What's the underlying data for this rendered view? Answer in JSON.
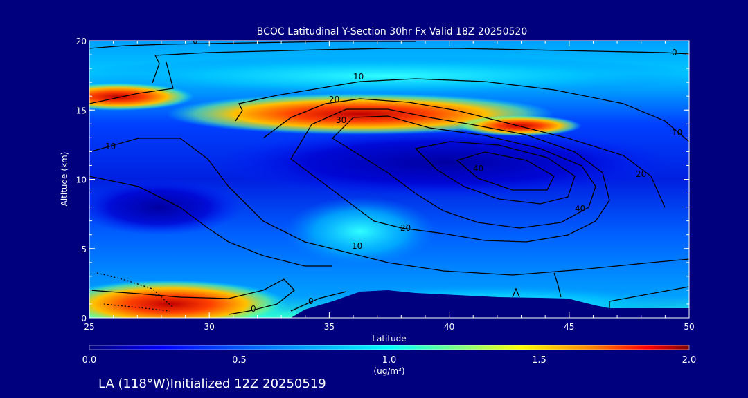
{
  "chart_data": {
    "type": "heatmap",
    "title": "BCOC Latitudinal Y-Section 30hr  Fx Valid 18Z 20250520",
    "xlabel": "Latitude",
    "ylabel": "Altitude (km)",
    "xlim": [
      25,
      50
    ],
    "ylim": [
      0,
      20
    ],
    "x_ticks": [
      "25",
      "30",
      "35",
      "40",
      "45",
      "50"
    ],
    "y_ticks": [
      "0",
      "5",
      "10",
      "15",
      "20"
    ],
    "colorbar": {
      "ticks": [
        "0.0",
        "0.5",
        "1.0",
        "1.5",
        "2.0"
      ],
      "range": [
        0,
        2
      ],
      "unit": "(ug/m³)",
      "colors": [
        "#00007f",
        "#0000ff",
        "#00a0ff",
        "#00ffff",
        "#80ff80",
        "#ffff00",
        "#ff8000",
        "#ff0000",
        "#7f0000"
      ]
    },
    "concentration_bands": [
      {
        "lat_range": [
          25,
          28
        ],
        "alt_range": [
          15.5,
          16.3
        ],
        "value": 1.9
      },
      {
        "lat_range": [
          31,
          45
        ],
        "alt_range": [
          13.3,
          15.8
        ],
        "value": 1.7
      },
      {
        "lat_range": [
          25,
          33
        ],
        "alt_range": [
          0,
          1.5
        ],
        "value": 1.6
      },
      {
        "lat_range": [
          34,
          41
        ],
        "alt_range": [
          5,
          7
        ],
        "value": 0.85
      },
      {
        "lat_range": [
          25,
          50
        ],
        "alt_range": [
          16,
          19.8
        ],
        "value": 0.7
      },
      {
        "lat_range": [
          30,
          46
        ],
        "alt_range": [
          9,
          12.5
        ],
        "value": 0.15
      }
    ],
    "contour_labels": [
      "0",
      "0",
      "0",
      "0",
      "10",
      "10",
      "10",
      "10",
      "20",
      "20",
      "20",
      "30",
      "40",
      "40"
    ],
    "terrain_note": "terrain masked",
    "bottom_caption": "LA (118°W)Initialized 12Z 20250519"
  }
}
